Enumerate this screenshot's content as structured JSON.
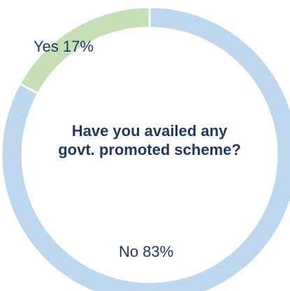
{
  "chart_data": {
    "type": "donut",
    "title": "Have you availed any govt. promoted scheme?",
    "categories": [
      "Yes",
      "No"
    ],
    "values": [
      17,
      83
    ],
    "value_labels": [
      "17%",
      "83%"
    ],
    "colors": [
      "#c5e0b4",
      "#bdd7ee"
    ]
  }
}
